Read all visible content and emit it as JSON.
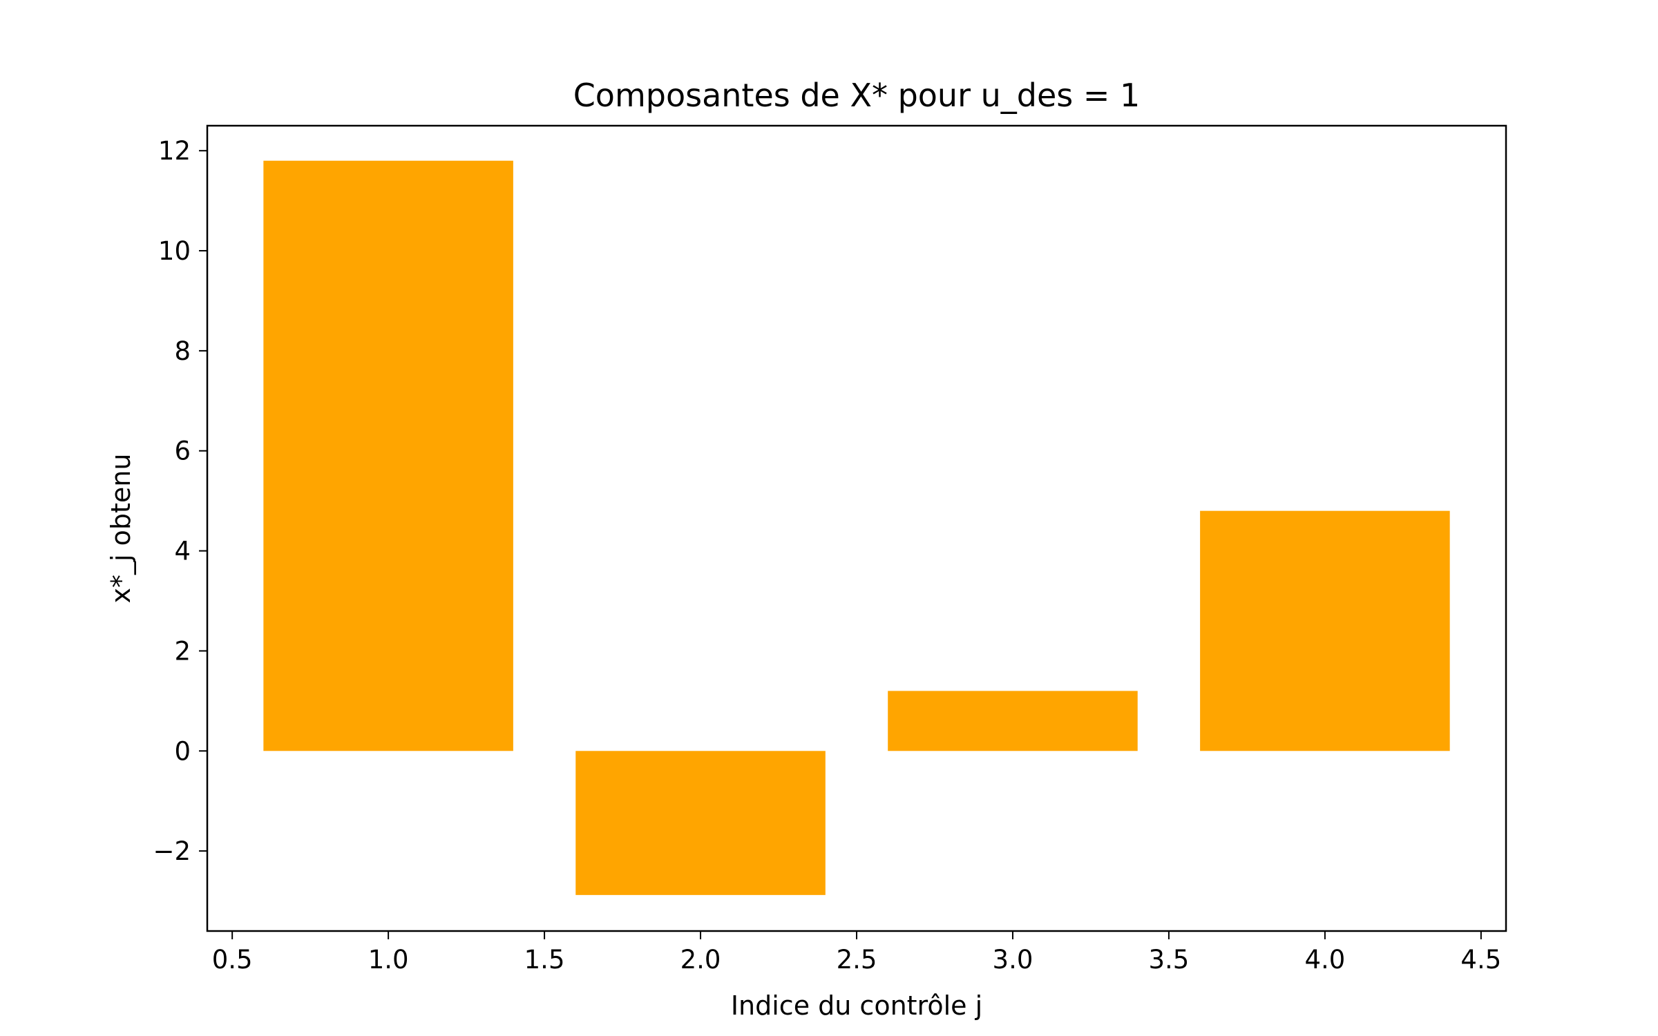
{
  "chart_data": {
    "type": "bar",
    "title": "Composantes de X* pour u_des = 1",
    "xlabel": "Indice du contrôle j",
    "ylabel": "x*_j obtenu",
    "x": [
      1,
      2,
      3,
      4
    ],
    "values": [
      11.8,
      -2.88,
      1.2,
      4.8
    ],
    "bar_width": 0.8,
    "xlim": [
      0.42,
      4.58
    ],
    "ylim": [
      -3.6,
      12.5
    ],
    "x_ticks": [
      0.5,
      1.0,
      1.5,
      2.0,
      2.5,
      3.0,
      3.5,
      4.0,
      4.5
    ],
    "x_tick_labels": [
      "0.5",
      "1.0",
      "1.5",
      "2.0",
      "2.5",
      "3.0",
      "3.5",
      "4.0",
      "4.5"
    ],
    "y_ticks": [
      -2,
      0,
      2,
      4,
      6,
      8,
      10,
      12
    ],
    "y_tick_labels": [
      "−2",
      "0",
      "2",
      "4",
      "6",
      "8",
      "10",
      "12"
    ],
    "bar_color": "#ffa500",
    "grid": false,
    "legend": "none"
  }
}
